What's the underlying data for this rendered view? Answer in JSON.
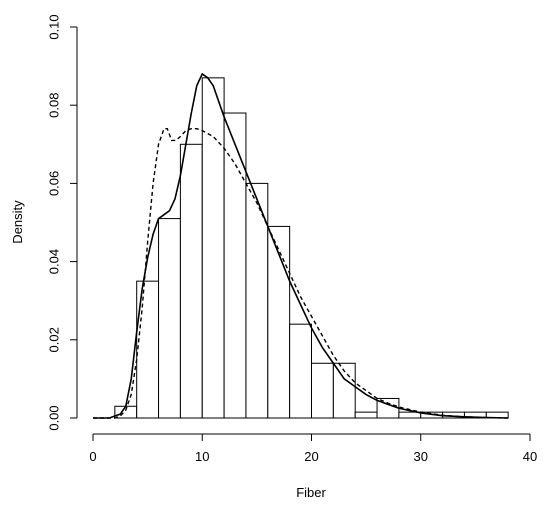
{
  "chart_data": {
    "type": "histogram",
    "xlabel": "Fiber",
    "ylabel": "Density",
    "xlim": [
      0,
      40
    ],
    "ylim": [
      0,
      0.1
    ],
    "x_ticks": [
      "0",
      "10",
      "20",
      "30",
      "40"
    ],
    "y_ticks": [
      "0.00",
      "0.02",
      "0.04",
      "0.06",
      "0.08",
      "0.10"
    ],
    "grid": false,
    "legend": "none",
    "bins": [
      {
        "start": 2,
        "end": 4,
        "density": 0.003
      },
      {
        "start": 4,
        "end": 6,
        "density": 0.035
      },
      {
        "start": 6,
        "end": 8,
        "density": 0.051
      },
      {
        "start": 8,
        "end": 10,
        "density": 0.07
      },
      {
        "start": 10,
        "end": 12,
        "density": 0.087
      },
      {
        "start": 12,
        "end": 14,
        "density": 0.078
      },
      {
        "start": 14,
        "end": 16,
        "density": 0.06
      },
      {
        "start": 16,
        "end": 18,
        "density": 0.049
      },
      {
        "start": 18,
        "end": 20,
        "density": 0.024
      },
      {
        "start": 20,
        "end": 22,
        "density": 0.014
      },
      {
        "start": 22,
        "end": 24,
        "density": 0.014
      },
      {
        "start": 24,
        "end": 26,
        "density": 0.0015
      },
      {
        "start": 26,
        "end": 28,
        "density": 0.005
      },
      {
        "start": 28,
        "end": 30,
        "density": 0.0015
      },
      {
        "start": 30,
        "end": 32,
        "density": 0.0015
      },
      {
        "start": 32,
        "end": 34,
        "density": 0.0015
      },
      {
        "start": 34,
        "end": 36,
        "density": 0.0015
      },
      {
        "start": 36,
        "end": 38,
        "density": 0.0015
      }
    ],
    "series": [
      {
        "style": "solid",
        "x": [
          0,
          1.5,
          2,
          2.5,
          3,
          3.5,
          4,
          4.5,
          5,
          5.5,
          6,
          6.5,
          7,
          7.5,
          8,
          8.5,
          9,
          9.5,
          10,
          10.5,
          11,
          12,
          13,
          14,
          15,
          16,
          17,
          18,
          19,
          20,
          21,
          22,
          23,
          24,
          25,
          26,
          27,
          28,
          30,
          32,
          34,
          36,
          38
        ],
        "y": [
          0,
          0,
          0.0005,
          0.001,
          0.003,
          0.01,
          0.022,
          0.033,
          0.041,
          0.047,
          0.051,
          0.052,
          0.053,
          0.056,
          0.062,
          0.07,
          0.078,
          0.085,
          0.088,
          0.087,
          0.085,
          0.077,
          0.07,
          0.063,
          0.056,
          0.049,
          0.042,
          0.035,
          0.029,
          0.023,
          0.018,
          0.014,
          0.01,
          0.008,
          0.006,
          0.0045,
          0.0035,
          0.0025,
          0.0013,
          0.0006,
          0.0003,
          0.0001,
          0
        ]
      },
      {
        "style": "dashed",
        "x": [
          0,
          2,
          2.5,
          3,
          3.5,
          4,
          4.5,
          5,
          5.5,
          6,
          6.5,
          6.8,
          7.2,
          7.6,
          8,
          8.5,
          9,
          9.5,
          10,
          11,
          12,
          13,
          14,
          15,
          16,
          17,
          18,
          19,
          20,
          21,
          22,
          23,
          24,
          25,
          26,
          27,
          28,
          30,
          32,
          34,
          36,
          38
        ],
        "y": [
          0,
          0,
          0.0005,
          0.002,
          0.006,
          0.015,
          0.028,
          0.045,
          0.06,
          0.07,
          0.074,
          0.074,
          0.071,
          0.071,
          0.072,
          0.0735,
          0.074,
          0.074,
          0.0735,
          0.072,
          0.069,
          0.065,
          0.06,
          0.055,
          0.049,
          0.043,
          0.037,
          0.031,
          0.026,
          0.021,
          0.016,
          0.012,
          0.009,
          0.007,
          0.005,
          0.0038,
          0.0028,
          0.0015,
          0.0007,
          0.0003,
          0.0001,
          0
        ]
      }
    ]
  }
}
